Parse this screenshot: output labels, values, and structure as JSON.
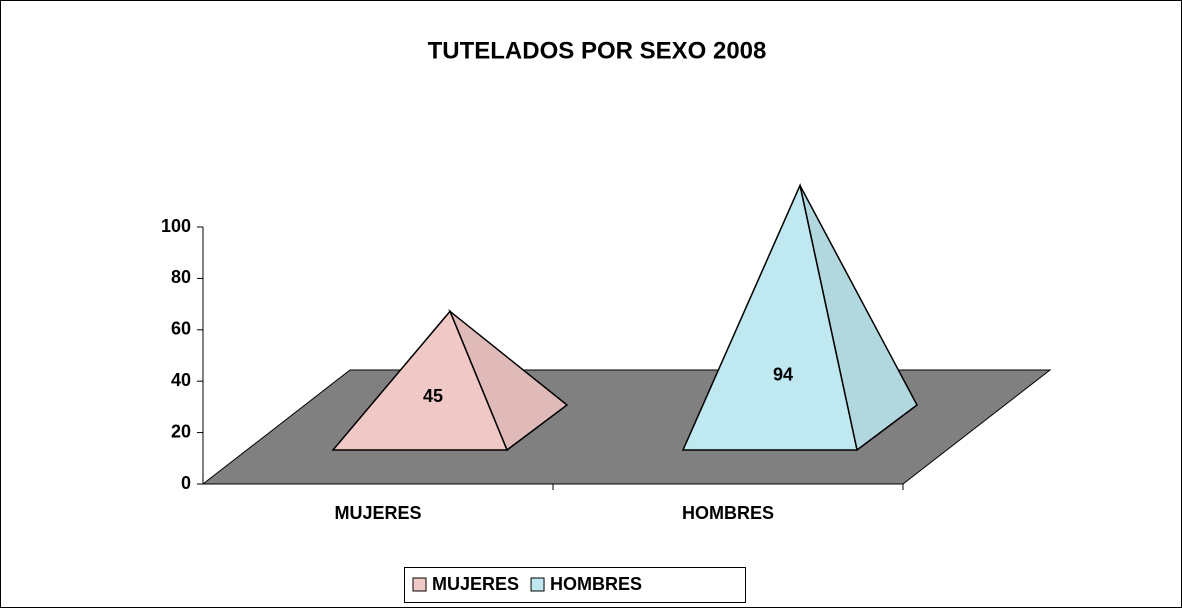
{
  "chart_data": {
    "type": "pyramid3d",
    "title": "TUTELADOS POR SEXO 2008",
    "categories": [
      "MUJERES",
      "HOMBRES"
    ],
    "values": [
      45,
      94
    ],
    "colors": [
      "#f0c8c6",
      "#bfe8f0"
    ],
    "ylim": [
      0,
      100
    ],
    "yticks": [
      0,
      20,
      40,
      60,
      80,
      100
    ],
    "legend": "bottom"
  }
}
